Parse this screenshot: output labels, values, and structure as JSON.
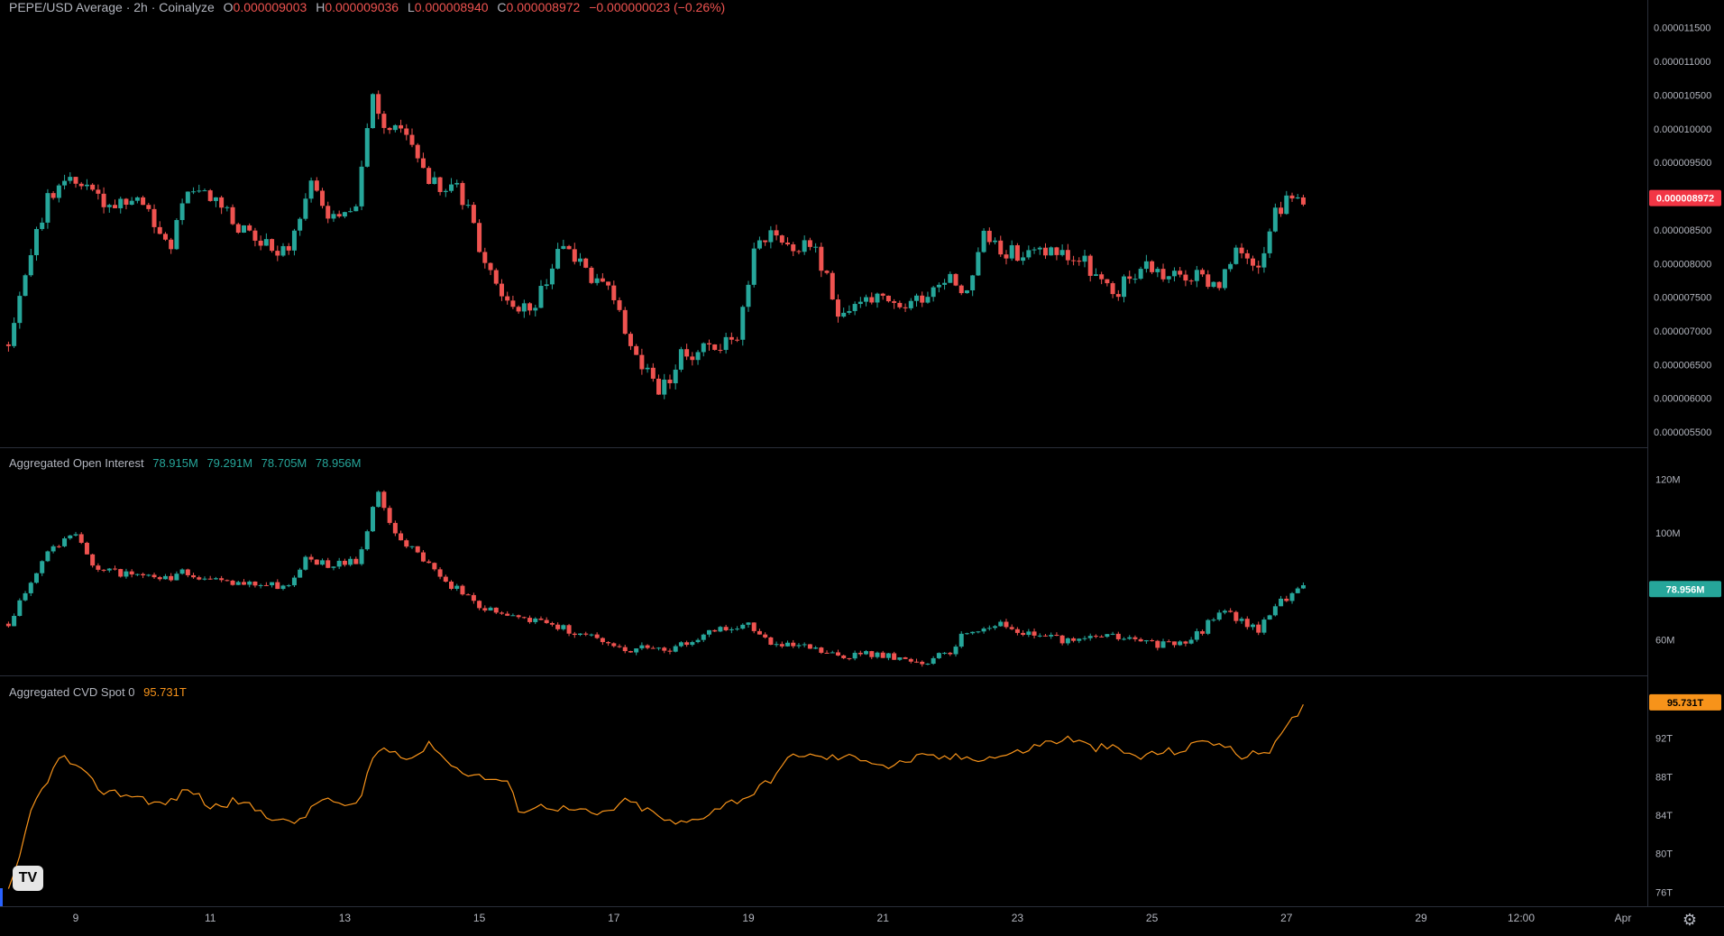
{
  "header": {
    "symbol": "PEPE/USD Average · 2h · Coinalyze",
    "open_label": "O",
    "open": "0.000009003",
    "high_label": "H",
    "high": "0.000009036",
    "low_label": "L",
    "low": "0.000008940",
    "close_label": "C",
    "close": "0.000008972",
    "change": "−0.000000023 (−0.26%)"
  },
  "oi_header": {
    "title": "Aggregated Open Interest",
    "values": [
      "78.915M",
      "79.291M",
      "78.705M",
      "78.956M"
    ]
  },
  "cvd_header": {
    "title": "Aggregated CVD Spot 0",
    "value": "95.731T"
  },
  "colors": {
    "up": "#26a69a",
    "down": "#ef5350",
    "cvd": "#f7931a",
    "price_tag": "#f23645",
    "oi_tag": "#26a69a",
    "cvd_tag": "#f7931a"
  },
  "price_tag": "0.000008972",
  "oi_tag": "78.956M",
  "cvd_tag": "95.731T",
  "x_axis_labels": [
    "9",
    "11",
    "13",
    "15",
    "17",
    "19",
    "21",
    "23",
    "25",
    "27",
    "29",
    "12:00",
    "Apr"
  ],
  "chart_data": [
    {
      "type": "candlestick",
      "title": "PEPE/USD Average · 2h · Coinalyze",
      "y_ticks": [
        "0.000011500",
        "0.000011000",
        "0.000010500",
        "0.000010000",
        "0.000009500",
        "0.000009000",
        "0.000008500",
        "0.000008000",
        "0.000007500",
        "0.000007000",
        "0.000006500",
        "0.000006000",
        "0.000005500"
      ],
      "ylim": [
        5.3e-06,
        1.1858e-05
      ],
      "close_anchors_by_day": [
        [
          8.0,
          6.8e-06
        ],
        [
          8.3,
          8e-06
        ],
        [
          8.6,
          9e-06
        ],
        [
          9.0,
          9.3e-06
        ],
        [
          9.5,
          8.8e-06
        ],
        [
          10.0,
          8.9e-06
        ],
        [
          10.4,
          8.2e-06
        ],
        [
          10.7,
          9.2e-06
        ],
        [
          11.2,
          8.8e-06
        ],
        [
          11.7,
          8.3e-06
        ],
        [
          12.2,
          8.2e-06
        ],
        [
          12.5,
          9.3e-06
        ],
        [
          12.8,
          8.6e-06
        ],
        [
          13.2,
          9e-06
        ],
        [
          13.4,
          1.06e-05
        ],
        [
          13.6,
          9.9e-06
        ],
        [
          13.9,
          1e-05
        ],
        [
          14.3,
          9.2e-06
        ],
        [
          14.7,
          9.1e-06
        ],
        [
          15.0,
          8.3e-06
        ],
        [
          15.5,
          7.3e-06
        ],
        [
          15.9,
          7.5e-06
        ],
        [
          16.2,
          8.2e-06
        ],
        [
          16.6,
          7.9e-06
        ],
        [
          17.0,
          7.5e-06
        ],
        [
          17.3,
          6.7e-06
        ],
        [
          17.7,
          6.1e-06
        ],
        [
          18.0,
          6.6e-06
        ],
        [
          18.4,
          6.8e-06
        ],
        [
          18.8,
          6.8e-06
        ],
        [
          19.1,
          8.2e-06
        ],
        [
          19.3,
          8.5e-06
        ],
        [
          19.7,
          8.2e-06
        ],
        [
          20.0,
          8.3e-06
        ],
        [
          20.3,
          7.3e-06
        ],
        [
          20.8,
          7.5e-06
        ],
        [
          21.2,
          7.3e-06
        ],
        [
          21.7,
          7.6e-06
        ],
        [
          22.0,
          7.9e-06
        ],
        [
          22.2,
          7.5e-06
        ],
        [
          22.5,
          8.4e-06
        ],
        [
          23.0,
          8.1e-06
        ],
        [
          23.5,
          8.2e-06
        ],
        [
          24.0,
          8e-06
        ],
        [
          24.4,
          7.5e-06
        ],
        [
          24.9,
          8e-06
        ],
        [
          25.2,
          7.8e-06
        ],
        [
          25.6,
          7.8e-06
        ],
        [
          26.0,
          7.7e-06
        ],
        [
          26.3,
          8.2e-06
        ],
        [
          26.6,
          8e-06
        ],
        [
          26.8,
          8.8e-06
        ],
        [
          27.2,
          9e-06
        ]
      ],
      "last": {
        "open": 9.003e-06,
        "high": 9.036e-06,
        "low": 8.94e-06,
        "close": 8.972e-06
      }
    },
    {
      "type": "candlestick",
      "title": "Aggregated Open Interest",
      "y_ticks": [
        "120M",
        "100M",
        "60M"
      ],
      "ylim": [
        48,
        128
      ],
      "close_anchors_by_day": [
        [
          8.0,
          66
        ],
        [
          8.2,
          76
        ],
        [
          8.6,
          94
        ],
        [
          9.0,
          99
        ],
        [
          9.3,
          87
        ],
        [
          9.8,
          84
        ],
        [
          10.3,
          82
        ],
        [
          10.6,
          85
        ],
        [
          11.2,
          81
        ],
        [
          11.7,
          81
        ],
        [
          12.2,
          80
        ],
        [
          12.4,
          90
        ],
        [
          12.8,
          88
        ],
        [
          13.2,
          90
        ],
        [
          13.4,
          108
        ],
        [
          13.5,
          115
        ],
        [
          13.8,
          97
        ],
        [
          14.2,
          90
        ],
        [
          14.6,
          80
        ],
        [
          15.0,
          72
        ],
        [
          15.5,
          69
        ],
        [
          16.0,
          66
        ],
        [
          16.4,
          63
        ],
        [
          16.8,
          60
        ],
        [
          17.2,
          56
        ],
        [
          17.5,
          58
        ],
        [
          17.8,
          55
        ],
        [
          18.2,
          61
        ],
        [
          18.6,
          64
        ],
        [
          19.0,
          65
        ],
        [
          19.4,
          58
        ],
        [
          19.9,
          57
        ],
        [
          20.3,
          54
        ],
        [
          20.8,
          55
        ],
        [
          21.2,
          53
        ],
        [
          21.6,
          52
        ],
        [
          22.0,
          55
        ],
        [
          22.2,
          63
        ],
        [
          22.7,
          66
        ],
        [
          23.2,
          62
        ],
        [
          23.8,
          59
        ],
        [
          24.3,
          62
        ],
        [
          24.7,
          60
        ],
        [
          25.2,
          58
        ],
        [
          25.6,
          60
        ],
        [
          26.0,
          70
        ],
        [
          26.3,
          68
        ],
        [
          26.6,
          63
        ],
        [
          26.8,
          73
        ],
        [
          27.2,
          79
        ]
      ],
      "last": {
        "open": 78.915,
        "high": 79.291,
        "low": 78.705,
        "close": 78.956
      }
    },
    {
      "type": "line",
      "title": "Aggregated CVD Spot 0",
      "y_ticks": [
        "92T",
        "88T",
        "84T",
        "80T",
        "76T"
      ],
      "ylim": [
        75,
        97.5
      ],
      "series": [
        {
          "name": "Aggregated CVD Spot 0",
          "points_by_day": [
            [
              8.0,
              76
            ],
            [
              8.2,
              80
            ],
            [
              8.3,
              84
            ],
            [
              8.6,
              88
            ],
            [
              8.8,
              90.2
            ],
            [
              9.0,
              89
            ],
            [
              9.4,
              86.5
            ],
            [
              9.9,
              86
            ],
            [
              10.3,
              85
            ],
            [
              10.7,
              86.8
            ],
            [
              11.0,
              84.8
            ],
            [
              11.4,
              85.5
            ],
            [
              11.8,
              84.2
            ],
            [
              12.2,
              83
            ],
            [
              12.5,
              84.5
            ],
            [
              12.7,
              86
            ],
            [
              12.9,
              85
            ],
            [
              13.2,
              84.8
            ],
            [
              13.4,
              90
            ],
            [
              13.6,
              91
            ],
            [
              14.0,
              90
            ],
            [
              14.3,
              91.5
            ],
            [
              14.6,
              89
            ],
            [
              15.0,
              88
            ],
            [
              15.4,
              87.5
            ],
            [
              15.6,
              84.5
            ],
            [
              16.0,
              85
            ],
            [
              16.4,
              84.5
            ],
            [
              16.8,
              84
            ],
            [
              17.2,
              85.5
            ],
            [
              17.5,
              84.5
            ],
            [
              17.9,
              83
            ],
            [
              18.2,
              83.5
            ],
            [
              18.6,
              85
            ],
            [
              19.0,
              86
            ],
            [
              19.3,
              87.5
            ],
            [
              19.7,
              90.5
            ],
            [
              20.0,
              90
            ],
            [
              20.3,
              90
            ],
            [
              20.7,
              90
            ],
            [
              21.1,
              89
            ],
            [
              21.5,
              90
            ],
            [
              21.9,
              90
            ],
            [
              22.3,
              90
            ],
            [
              22.6,
              90
            ],
            [
              23.0,
              90.5
            ],
            [
              23.4,
              91.5
            ],
            [
              23.8,
              92
            ],
            [
              24.1,
              91
            ],
            [
              24.4,
              91
            ],
            [
              24.8,
              90
            ],
            [
              25.1,
              90.5
            ],
            [
              25.5,
              90.8
            ],
            [
              25.8,
              92
            ],
            [
              26.1,
              91
            ],
            [
              26.4,
              90
            ],
            [
              26.8,
              91
            ],
            [
              27.0,
              93
            ],
            [
              27.3,
              95.7
            ]
          ]
        }
      ],
      "last": 95.731
    }
  ]
}
